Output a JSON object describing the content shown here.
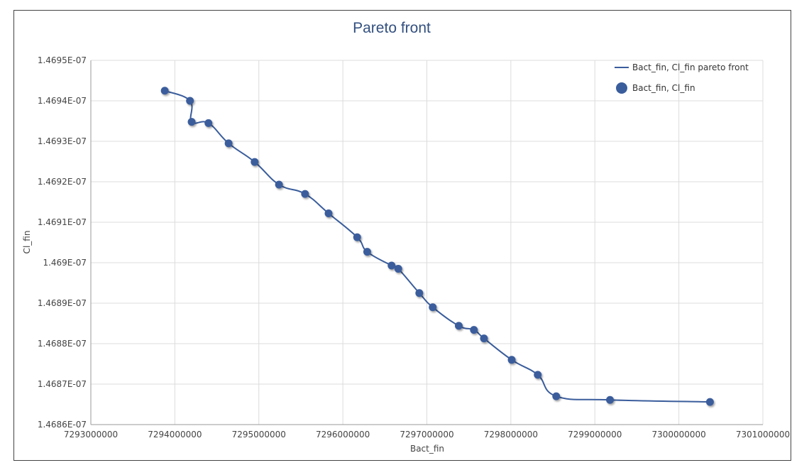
{
  "chart_data": {
    "type": "scatter",
    "title": "Pareto front",
    "xlabel": "Bact_fin",
    "ylabel": "Cl_fin",
    "xlim": [
      7293000000,
      7301000000
    ],
    "ylim": [
      1.4686e-07,
      1.4695e-07
    ],
    "x_ticks": [
      7293000000,
      7294000000,
      7295000000,
      7296000000,
      7297000000,
      7298000000,
      7299000000,
      7300000000,
      7301000000
    ],
    "x_tick_labels": [
      "7293000000",
      "7294000000",
      "7295000000",
      "7296000000",
      "7297000000",
      "7298000000",
      "7299000000",
      "7300000000",
      "7301000000"
    ],
    "y_ticks": [
      1.4686e-07,
      1.4687e-07,
      1.4688e-07,
      1.4689e-07,
      1.469e-07,
      1.4691e-07,
      1.4692e-07,
      1.4693e-07,
      1.4694e-07,
      1.4695e-07
    ],
    "y_tick_labels": [
      "1.4686E-07",
      "1.4687E-07",
      "1.4688E-07",
      "1.4689E-07",
      "1.469E-07",
      "1.4691E-07",
      "1.4692E-07",
      "1.4693E-07",
      "1.4694E-07",
      "1.4695E-07"
    ],
    "grid": true,
    "legend_position": "top-right",
    "color": "#3a5d9c",
    "series": [
      {
        "name": "Bact_fin, Cl_fin pareto front",
        "kind": "line",
        "x": [
          7293880000,
          7294180000,
          7294200000,
          7294400000,
          7294640000,
          7294950000,
          7295240000,
          7295550000,
          7295830000,
          7296170000,
          7296290000,
          7296580000,
          7296660000,
          7296910000,
          7297070000,
          7297380000,
          7297560000,
          7297680000,
          7298010000,
          7298320000,
          7298540000,
          7299180000,
          7300370000
        ],
        "y": [
          1.469425e-07,
          1.4694e-07,
          1.469348e-07,
          1.469345e-07,
          1.469295e-07,
          1.469249e-07,
          1.469193e-07,
          1.46917e-07,
          1.469122e-07,
          1.469063e-07,
          1.469027e-07,
          1.468993e-07,
          1.468985e-07,
          1.468925e-07,
          1.46889e-07,
          1.468844e-07,
          1.468834e-07,
          1.468813e-07,
          1.46876e-07,
          1.468723e-07,
          1.46867e-07,
          1.468661e-07,
          1.468656e-07
        ]
      },
      {
        "name": "Bact_fin, Cl_fin",
        "kind": "scatter",
        "x": [
          7293880000,
          7294180000,
          7294200000,
          7294400000,
          7294640000,
          7294950000,
          7295240000,
          7295550000,
          7295830000,
          7296170000,
          7296290000,
          7296580000,
          7296660000,
          7296910000,
          7297070000,
          7297380000,
          7297560000,
          7297680000,
          7298010000,
          7298320000,
          7298540000,
          7299180000,
          7300370000
        ],
        "y": [
          1.469425e-07,
          1.4694e-07,
          1.469348e-07,
          1.469345e-07,
          1.469295e-07,
          1.469249e-07,
          1.469193e-07,
          1.46917e-07,
          1.469122e-07,
          1.469063e-07,
          1.469027e-07,
          1.468993e-07,
          1.468985e-07,
          1.468925e-07,
          1.46889e-07,
          1.468844e-07,
          1.468834e-07,
          1.468813e-07,
          1.46876e-07,
          1.468723e-07,
          1.46867e-07,
          1.468661e-07,
          1.468656e-07
        ]
      }
    ]
  }
}
